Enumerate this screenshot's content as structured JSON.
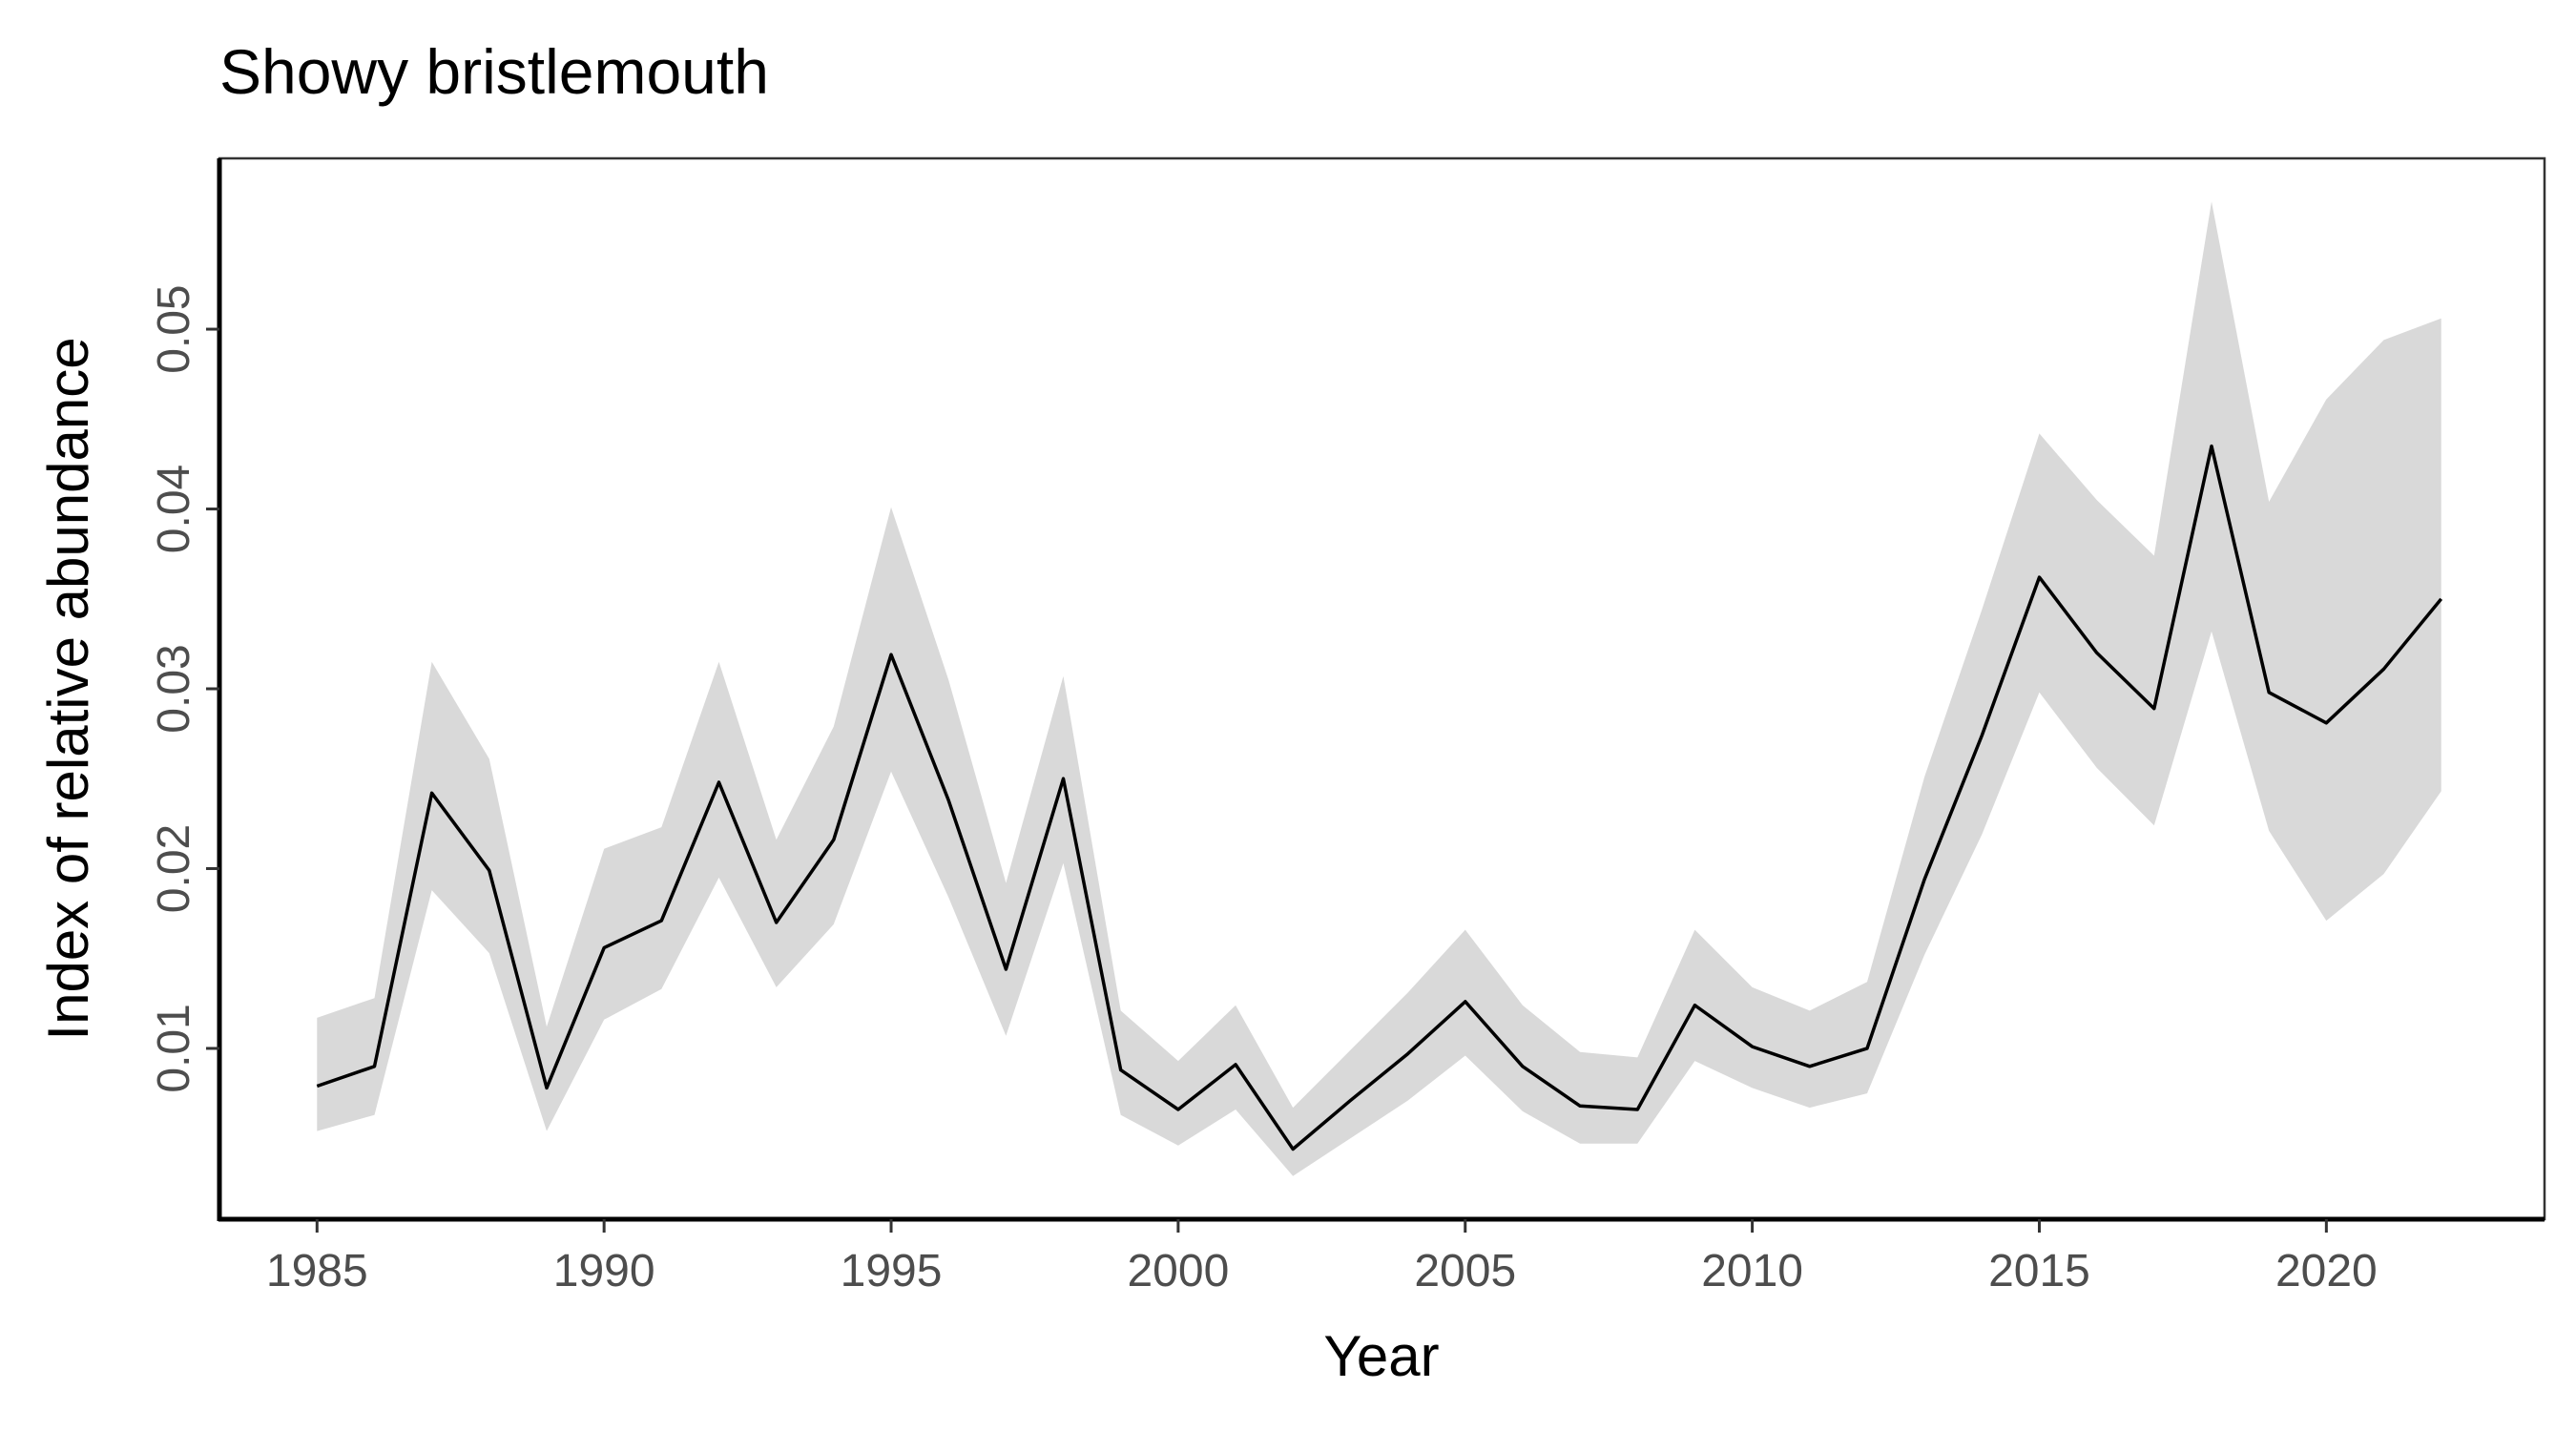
{
  "chart_data": {
    "type": "line",
    "title": "Showy bristlemouth",
    "xlabel": "Year",
    "ylabel": "Index of relative abundance",
    "xlim": [
      1983.3,
      2023.8
    ],
    "ylim": [
      0.0005,
      0.0595
    ],
    "x_ticks": [
      1985,
      1990,
      1995,
      2000,
      2005,
      2010,
      2015,
      2020
    ],
    "y_ticks": [
      0.01,
      0.02,
      0.03,
      0.04,
      0.05
    ],
    "x_tick_labels": [
      "1985",
      "1990",
      "1995",
      "2000",
      "2005",
      "2010",
      "2015",
      "2020"
    ],
    "y_tick_labels": [
      "0.01",
      "0.02",
      "0.03",
      "0.04",
      "0.05"
    ],
    "grid": false,
    "legend": "none",
    "colors": {
      "line": "#000000",
      "ribbon": "#d9d9d9",
      "axis": "#000000",
      "tick_label": "#4d4d4d"
    },
    "x": [
      1985,
      1986,
      1987,
      1988,
      1989,
      1990,
      1991,
      1992,
      1993,
      1994,
      1995,
      1996,
      1997,
      1998,
      1999,
      2000,
      2001,
      2002,
      2003,
      2004,
      2005,
      2006,
      2007,
      2008,
      2009,
      2010,
      2011,
      2012,
      2013,
      2014,
      2015,
      2016,
      2017,
      2018,
      2019,
      2020,
      2021,
      2022
    ],
    "series": [
      {
        "values": [
          0.0079,
          0.009,
          0.0242,
          0.0199,
          0.0078,
          0.0156,
          0.0171,
          0.0248,
          0.017,
          0.0216,
          0.0319,
          0.0238,
          0.0144,
          0.025,
          0.0088,
          0.0066,
          0.0091,
          0.0044,
          0.0071,
          0.0097,
          0.0126,
          0.009,
          0.0068,
          0.0066,
          0.0124,
          0.0101,
          0.009,
          0.01,
          0.0194,
          0.0274,
          0.0362,
          0.032,
          0.0289,
          0.0435,
          0.0298,
          0.0281,
          0.0311,
          0.035
        ],
        "lower": [
          0.0054,
          0.0063,
          0.0188,
          0.0153,
          0.0054,
          0.0116,
          0.0133,
          0.0195,
          0.0134,
          0.0169,
          0.0254,
          0.0184,
          0.0107,
          0.0203,
          0.0063,
          0.0046,
          0.0066,
          0.0029,
          0.005,
          0.0071,
          0.0096,
          0.0065,
          0.0047,
          0.0047,
          0.0093,
          0.0078,
          0.0067,
          0.0075,
          0.0152,
          0.0219,
          0.0298,
          0.0256,
          0.0224,
          0.0332,
          0.0221,
          0.0171,
          0.0197,
          0.0243
        ],
        "upper": [
          0.0117,
          0.0128,
          0.0315,
          0.0261,
          0.0112,
          0.0211,
          0.0223,
          0.0315,
          0.0216,
          0.0279,
          0.0401,
          0.0305,
          0.0192,
          0.0307,
          0.0121,
          0.0093,
          0.0124,
          0.0067,
          0.0099,
          0.0131,
          0.0166,
          0.0124,
          0.0098,
          0.0095,
          0.0166,
          0.0134,
          0.0121,
          0.0137,
          0.0251,
          0.0344,
          0.0442,
          0.0405,
          0.0374,
          0.0571,
          0.0404,
          0.0461,
          0.0494,
          0.0506
        ]
      }
    ]
  }
}
